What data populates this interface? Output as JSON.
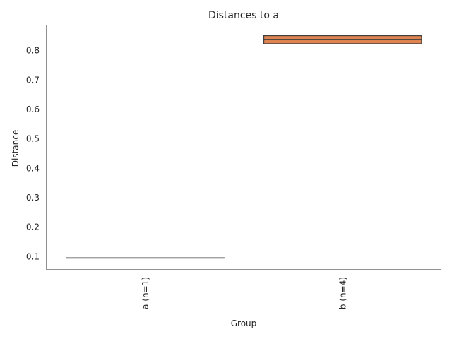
{
  "chart_data": {
    "type": "box",
    "title": "Distances to a",
    "xlabel": "Group",
    "ylabel": "Distance",
    "ylim": [
      0.055,
      0.888
    ],
    "yticks": [
      0.1,
      0.2,
      0.3,
      0.4,
      0.5,
      0.6,
      0.7,
      0.8
    ],
    "grid": false,
    "categories": [
      "a (n=1)",
      "b (n=4)"
    ],
    "boxes": [
      {
        "category": "a (n=1)",
        "q1": 0.095,
        "median": 0.095,
        "q3": 0.095,
        "whisker_low": 0.095,
        "whisker_high": 0.095,
        "color": "#4c72b0"
      },
      {
        "category": "b (n=4)",
        "q1": 0.823,
        "median": 0.838,
        "q3": 0.851,
        "whisker_low": 0.823,
        "whisker_high": 0.851,
        "color": "#dd8452"
      }
    ]
  }
}
